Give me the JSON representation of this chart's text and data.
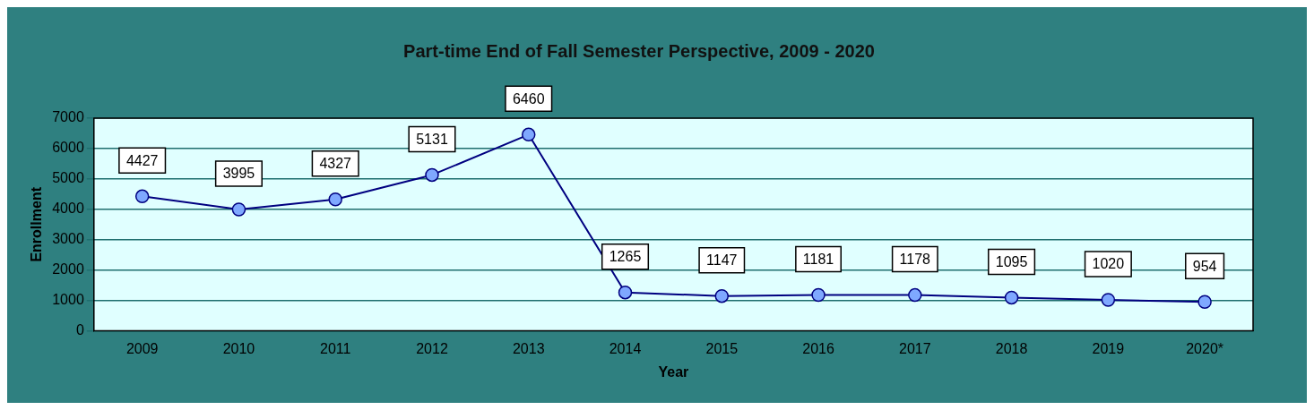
{
  "chart_data": {
    "type": "line",
    "title": "Part-time End of Fall Semester Perspective, 2009 - 2020",
    "xlabel": "Year",
    "ylabel": "Enrollment",
    "categories": [
      "2009",
      "2010",
      "2011",
      "2012",
      "2013",
      "2014",
      "2015",
      "2016",
      "2017",
      "2018",
      "2019",
      "2020*"
    ],
    "series": [
      {
        "color": "#000080",
        "values": [
          4427,
          3995,
          4327,
          5131,
          6460,
          1265,
          1147,
          1181,
          1178,
          1095,
          1020,
          954
        ]
      }
    ],
    "ylim": [
      0,
      7000
    ],
    "yticks": [
      0,
      1000,
      2000,
      3000,
      4000,
      5000,
      6000,
      7000
    ],
    "grid": "y",
    "legend": false,
    "marker": "circle",
    "line_style": "solid",
    "data_labels": true
  }
}
